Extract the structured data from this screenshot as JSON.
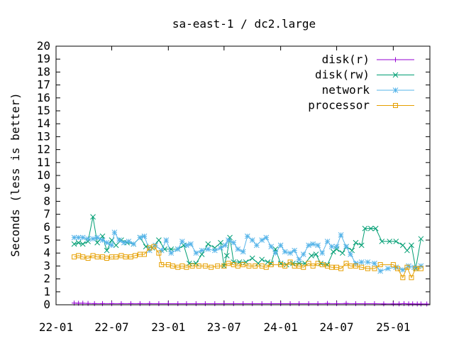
{
  "chart_data": {
    "type": "line",
    "title": "sa-east-1 / dc2.large",
    "xlabel": "",
    "ylabel": "Seconds (less is better)",
    "x_type": "date",
    "xlim": [
      "2022-01-01",
      "2025-04-30"
    ],
    "ylim": [
      0,
      20
    ],
    "yticks": [
      0,
      1,
      2,
      3,
      4,
      5,
      6,
      7,
      8,
      9,
      10,
      11,
      12,
      13,
      14,
      15,
      16,
      17,
      18,
      19,
      20
    ],
    "xticks": [
      {
        "date": "2022-01-01",
        "label": "22-01"
      },
      {
        "date": "2022-07-01",
        "label": "22-07"
      },
      {
        "date": "2023-01-01",
        "label": "23-01"
      },
      {
        "date": "2023-07-01",
        "label": "23-07"
      },
      {
        "date": "2024-01-01",
        "label": "24-01"
      },
      {
        "date": "2024-07-01",
        "label": "24-07"
      },
      {
        "date": "2025-01-01",
        "label": "25-01"
      }
    ],
    "grid": false,
    "legend_position": "top-right",
    "series": [
      {
        "name": "disk(r)",
        "color": "#9400d3",
        "marker": "plus",
        "points": [
          [
            "2022-03-01",
            0.13
          ],
          [
            "2022-03-15",
            0.12
          ],
          [
            "2022-03-29",
            0.12
          ],
          [
            "2022-04-15",
            0.1
          ],
          [
            "2022-05-06",
            0.09
          ],
          [
            "2022-06-01",
            0.09
          ],
          [
            "2022-07-01",
            0.09
          ],
          [
            "2022-08-01",
            0.09
          ],
          [
            "2022-09-01",
            0.09
          ],
          [
            "2022-10-01",
            0.09
          ],
          [
            "2022-11-01",
            0.09
          ],
          [
            "2022-12-01",
            0.08
          ],
          [
            "2023-01-01",
            0.08
          ],
          [
            "2023-02-01",
            0.08
          ],
          [
            "2023-03-01",
            0.08
          ],
          [
            "2023-04-01",
            0.08
          ],
          [
            "2023-05-01",
            0.08
          ],
          [
            "2023-06-01",
            0.08
          ],
          [
            "2023-07-01",
            0.08
          ],
          [
            "2023-08-01",
            0.08
          ],
          [
            "2023-09-01",
            0.08
          ],
          [
            "2023-10-01",
            0.08
          ],
          [
            "2023-11-01",
            0.08
          ],
          [
            "2023-12-01",
            0.08
          ],
          [
            "2024-01-01",
            0.08
          ],
          [
            "2024-02-01",
            0.08
          ],
          [
            "2024-03-01",
            0.08
          ],
          [
            "2024-04-01",
            0.08
          ],
          [
            "2024-05-01",
            0.08
          ],
          [
            "2024-06-01",
            0.1
          ],
          [
            "2024-07-01",
            0.08
          ],
          [
            "2024-08-01",
            0.1
          ],
          [
            "2024-09-01",
            0.08
          ],
          [
            "2024-10-01",
            0.08
          ],
          [
            "2024-11-01",
            0.08
          ],
          [
            "2024-12-01",
            0.07
          ],
          [
            "2025-01-01",
            0.07
          ],
          [
            "2025-01-20",
            0.07
          ],
          [
            "2025-02-05",
            0.09
          ],
          [
            "2025-02-20",
            0.07
          ],
          [
            "2025-03-05",
            0.07
          ],
          [
            "2025-03-20",
            0.06
          ],
          [
            "2025-04-01",
            0.06
          ],
          [
            "2025-04-20",
            0.06
          ]
        ]
      },
      {
        "name": "disk(rw)",
        "color": "#009e73",
        "marker": "x",
        "points": [
          [
            "2022-03-01",
            4.7
          ],
          [
            "2022-03-15",
            4.8
          ],
          [
            "2022-03-29",
            4.7
          ],
          [
            "2022-04-15",
            4.9
          ],
          [
            "2022-05-01",
            6.8
          ],
          [
            "2022-05-15",
            4.8
          ],
          [
            "2022-06-01",
            5.3
          ],
          [
            "2022-06-15",
            4.2
          ],
          [
            "2022-07-01",
            5.0
          ],
          [
            "2022-07-15",
            4.6
          ],
          [
            "2022-08-01",
            5.0
          ],
          [
            "2022-08-20",
            4.8
          ],
          [
            "2022-09-10",
            4.7
          ],
          [
            "2022-10-01",
            5.2
          ],
          [
            "2022-10-20",
            4.5
          ],
          [
            "2022-11-10",
            4.4
          ],
          [
            "2022-12-01",
            5.0
          ],
          [
            "2022-12-20",
            4.3
          ],
          [
            "2023-01-10",
            4.3
          ],
          [
            "2023-02-01",
            4.3
          ],
          [
            "2023-02-20",
            4.6
          ],
          [
            "2023-03-10",
            3.2
          ],
          [
            "2023-04-01",
            3.2
          ],
          [
            "2023-04-20",
            3.9
          ],
          [
            "2023-05-10",
            4.7
          ],
          [
            "2023-06-01",
            4.4
          ],
          [
            "2023-06-20",
            4.8
          ],
          [
            "2023-07-01",
            3.0
          ],
          [
            "2023-07-10",
            3.8
          ],
          [
            "2023-07-20",
            5.2
          ],
          [
            "2023-08-01",
            3.3
          ],
          [
            "2023-08-20",
            3.3
          ],
          [
            "2023-09-10",
            3.3
          ],
          [
            "2023-10-01",
            3.6
          ],
          [
            "2023-10-20",
            3.2
          ],
          [
            "2023-11-01",
            3.5
          ],
          [
            "2023-11-20",
            3.3
          ],
          [
            "2023-12-01",
            3.2
          ],
          [
            "2023-12-15",
            4.3
          ],
          [
            "2024-01-01",
            3.2
          ],
          [
            "2024-01-20",
            3.1
          ],
          [
            "2024-02-10",
            3.2
          ],
          [
            "2024-03-01",
            3.2
          ],
          [
            "2024-03-20",
            3.2
          ],
          [
            "2024-04-10",
            3.8
          ],
          [
            "2024-04-25",
            3.9
          ],
          [
            "2024-05-10",
            3.2
          ],
          [
            "2024-06-01",
            3.1
          ],
          [
            "2024-06-20",
            4.1
          ],
          [
            "2024-07-01",
            4.3
          ],
          [
            "2024-07-20",
            4.0
          ],
          [
            "2024-08-01",
            4.5
          ],
          [
            "2024-08-20",
            4.2
          ],
          [
            "2024-09-01",
            4.8
          ],
          [
            "2024-09-20",
            4.6
          ],
          [
            "2024-10-01",
            5.9
          ],
          [
            "2024-10-20",
            5.9
          ],
          [
            "2024-11-05",
            5.9
          ],
          [
            "2024-11-25",
            4.9
          ],
          [
            "2024-12-20",
            4.9
          ],
          [
            "2025-01-10",
            4.9
          ],
          [
            "2025-02-01",
            4.6
          ],
          [
            "2025-02-15",
            4.2
          ],
          [
            "2025-03-01",
            4.6
          ],
          [
            "2025-03-15",
            2.8
          ],
          [
            "2025-04-01",
            5.1
          ]
        ]
      },
      {
        "name": "network",
        "color": "#56b4e9",
        "marker": "star",
        "points": [
          [
            "2022-03-01",
            5.2
          ],
          [
            "2022-03-15",
            5.2
          ],
          [
            "2022-03-29",
            5.2
          ],
          [
            "2022-04-15",
            5.1
          ],
          [
            "2022-05-01",
            5.1
          ],
          [
            "2022-05-15",
            5.2
          ],
          [
            "2022-06-01",
            5.0
          ],
          [
            "2022-06-15",
            4.8
          ],
          [
            "2022-07-01",
            4.6
          ],
          [
            "2022-07-10",
            5.6
          ],
          [
            "2022-07-25",
            5.0
          ],
          [
            "2022-08-10",
            4.8
          ],
          [
            "2022-08-25",
            4.9
          ],
          [
            "2022-09-10",
            4.7
          ],
          [
            "2022-10-01",
            5.2
          ],
          [
            "2022-10-15",
            5.3
          ],
          [
            "2022-11-01",
            4.2
          ],
          [
            "2022-11-20",
            4.6
          ],
          [
            "2022-12-10",
            4.2
          ],
          [
            "2022-12-25",
            5.0
          ],
          [
            "2023-01-10",
            4.0
          ],
          [
            "2023-02-01",
            4.3
          ],
          [
            "2023-02-15",
            4.9
          ],
          [
            "2023-03-01",
            4.6
          ],
          [
            "2023-03-15",
            4.7
          ],
          [
            "2023-04-01",
            4.0
          ],
          [
            "2023-04-20",
            4.2
          ],
          [
            "2023-05-10",
            4.3
          ],
          [
            "2023-06-01",
            4.2
          ],
          [
            "2023-06-20",
            4.4
          ],
          [
            "2023-07-05",
            4.6
          ],
          [
            "2023-07-15",
            5.0
          ],
          [
            "2023-08-01",
            4.8
          ],
          [
            "2023-08-15",
            4.3
          ],
          [
            "2023-09-01",
            4.1
          ],
          [
            "2023-09-15",
            5.3
          ],
          [
            "2023-10-01",
            5.0
          ],
          [
            "2023-10-15",
            4.6
          ],
          [
            "2023-11-01",
            5.0
          ],
          [
            "2023-11-15",
            5.2
          ],
          [
            "2023-12-01",
            4.5
          ],
          [
            "2023-12-15",
            4.0
          ],
          [
            "2024-01-01",
            4.6
          ],
          [
            "2024-01-15",
            4.1
          ],
          [
            "2024-02-01",
            4.0
          ],
          [
            "2024-02-15",
            4.2
          ],
          [
            "2024-03-01",
            3.5
          ],
          [
            "2024-03-15",
            3.9
          ],
          [
            "2024-04-01",
            4.6
          ],
          [
            "2024-04-15",
            4.7
          ],
          [
            "2024-05-01",
            4.6
          ],
          [
            "2024-05-15",
            4.0
          ],
          [
            "2024-06-01",
            4.9
          ],
          [
            "2024-06-15",
            4.5
          ],
          [
            "2024-07-01",
            4.5
          ],
          [
            "2024-07-15",
            5.4
          ],
          [
            "2024-08-01",
            4.5
          ],
          [
            "2024-08-15",
            3.9
          ],
          [
            "2024-09-01",
            3.2
          ],
          [
            "2024-09-20",
            3.3
          ],
          [
            "2024-10-10",
            3.3
          ],
          [
            "2024-11-01",
            3.2
          ],
          [
            "2024-11-20",
            2.6
          ],
          [
            "2024-12-15",
            2.8
          ],
          [
            "2025-01-10",
            2.9
          ],
          [
            "2025-02-01",
            2.7
          ],
          [
            "2025-02-20",
            3.0
          ],
          [
            "2025-03-10",
            2.9
          ],
          [
            "2025-04-01",
            3.0
          ]
        ]
      },
      {
        "name": "processor",
        "color": "#e69f00",
        "marker": "square",
        "points": [
          [
            "2022-03-01",
            3.7
          ],
          [
            "2022-03-15",
            3.8
          ],
          [
            "2022-03-29",
            3.7
          ],
          [
            "2022-04-15",
            3.6
          ],
          [
            "2022-05-01",
            3.8
          ],
          [
            "2022-05-15",
            3.7
          ],
          [
            "2022-06-01",
            3.7
          ],
          [
            "2022-06-15",
            3.6
          ],
          [
            "2022-07-01",
            3.7
          ],
          [
            "2022-07-15",
            3.7
          ],
          [
            "2022-08-01",
            3.8
          ],
          [
            "2022-08-15",
            3.7
          ],
          [
            "2022-09-01",
            3.7
          ],
          [
            "2022-09-15",
            3.8
          ],
          [
            "2022-10-01",
            3.9
          ],
          [
            "2022-10-15",
            3.9
          ],
          [
            "2022-11-01",
            4.4
          ],
          [
            "2022-11-15",
            4.5
          ],
          [
            "2022-12-01",
            4.0
          ],
          [
            "2022-12-10",
            3.1
          ],
          [
            "2023-01-01",
            3.1
          ],
          [
            "2023-01-15",
            3.0
          ],
          [
            "2023-02-01",
            2.9
          ],
          [
            "2023-02-15",
            3.0
          ],
          [
            "2023-03-01",
            2.9
          ],
          [
            "2023-03-20",
            3.0
          ],
          [
            "2023-04-10",
            3.0
          ],
          [
            "2023-05-01",
            3.0
          ],
          [
            "2023-05-20",
            2.9
          ],
          [
            "2023-06-10",
            3.0
          ],
          [
            "2023-07-01",
            3.0
          ],
          [
            "2023-07-15",
            3.2
          ],
          [
            "2023-08-01",
            3.1
          ],
          [
            "2023-08-15",
            3.0
          ],
          [
            "2023-09-01",
            3.1
          ],
          [
            "2023-09-20",
            3.0
          ],
          [
            "2023-10-10",
            3.0
          ],
          [
            "2023-11-01",
            3.0
          ],
          [
            "2023-11-15",
            2.9
          ],
          [
            "2023-12-01",
            3.1
          ],
          [
            "2024-01-01",
            3.1
          ],
          [
            "2024-01-15",
            3.0
          ],
          [
            "2024-02-01",
            3.3
          ],
          [
            "2024-02-15",
            3.0
          ],
          [
            "2024-03-01",
            3.0
          ],
          [
            "2024-03-15",
            2.9
          ],
          [
            "2024-04-01",
            3.2
          ],
          [
            "2024-04-15",
            3.0
          ],
          [
            "2024-05-01",
            3.2
          ],
          [
            "2024-05-15",
            3.1
          ],
          [
            "2024-06-01",
            3.0
          ],
          [
            "2024-06-15",
            2.9
          ],
          [
            "2024-07-01",
            2.9
          ],
          [
            "2024-07-15",
            2.8
          ],
          [
            "2024-08-01",
            3.2
          ],
          [
            "2024-08-15",
            3.0
          ],
          [
            "2024-09-01",
            3.0
          ],
          [
            "2024-09-20",
            2.9
          ],
          [
            "2024-10-10",
            2.8
          ],
          [
            "2024-11-01",
            2.8
          ],
          [
            "2024-11-20",
            3.1
          ],
          [
            "2025-01-01",
            3.1
          ],
          [
            "2025-01-15",
            2.8
          ],
          [
            "2025-02-01",
            2.1
          ],
          [
            "2025-02-15",
            2.9
          ],
          [
            "2025-03-01",
            2.1
          ],
          [
            "2025-03-15",
            2.8
          ],
          [
            "2025-04-01",
            2.8
          ]
        ]
      }
    ]
  }
}
